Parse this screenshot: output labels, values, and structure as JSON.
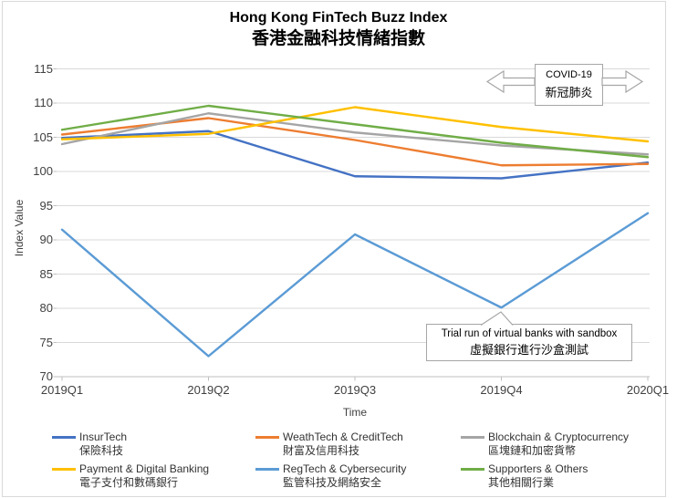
{
  "title": {
    "en": "Hong Kong FinTech Buzz Index",
    "zh": "香港金融科技情緒指數"
  },
  "annotations": {
    "covid": {
      "en": "COVID-19",
      "zh": "新冠肺炎"
    },
    "sandbox": {
      "en": "Trial run of virtual banks with sandbox",
      "zh": "虛擬銀行進行沙盒測試"
    }
  },
  "chart_data": {
    "type": "line",
    "title": "Hong Kong FinTech Buzz Index 香港金融科技情緒指數",
    "xlabel": "Time",
    "ylabel": "Index Value",
    "categories": [
      "2019Q1",
      "2019Q2",
      "2019Q3",
      "2019Q4",
      "2020Q1"
    ],
    "ylim": [
      70,
      115
    ],
    "yticks": [
      115,
      110,
      105,
      100,
      95,
      90,
      85,
      80,
      75,
      70
    ],
    "grid": true,
    "legend_position": "bottom",
    "series": [
      {
        "name_en": "InsurTech",
        "name_zh": "保險科技",
        "color": "#4472C4",
        "values": [
          104.9,
          105.9,
          99.3,
          99.0,
          101.3
        ]
      },
      {
        "name_en": "WeathTech & CreditTech",
        "name_zh": "財富及信用科技",
        "color": "#ED7D31",
        "values": [
          105.4,
          107.8,
          104.6,
          100.9,
          101.1
        ]
      },
      {
        "name_en": "Blockchain & Cryptocurrency",
        "name_zh": "區塊鏈和加密貨幣",
        "color": "#A5A5A5",
        "values": [
          104.0,
          108.5,
          105.7,
          103.8,
          102.5
        ]
      },
      {
        "name_en": "Payment & Digital Banking",
        "name_zh": "電子支付和數碼銀行",
        "color": "#FFC000",
        "values": [
          104.7,
          105.5,
          109.4,
          106.5,
          104.4
        ]
      },
      {
        "name_en": "RegTech & Cybersecurity",
        "name_zh": "監管科技及網絡安全",
        "color": "#5B9BD5",
        "values": [
          91.5,
          73.0,
          90.8,
          80.1,
          93.9
        ]
      },
      {
        "name_en": "Supporters & Others",
        "name_zh": "其他相關行業",
        "color": "#70AD47",
        "values": [
          106.1,
          109.6,
          106.9,
          104.2,
          102.1
        ]
      }
    ],
    "colors": {
      "gridline": "#D9D9D9",
      "axis": "#BFBFBF",
      "annotation_border": "#A6A6A6"
    }
  }
}
